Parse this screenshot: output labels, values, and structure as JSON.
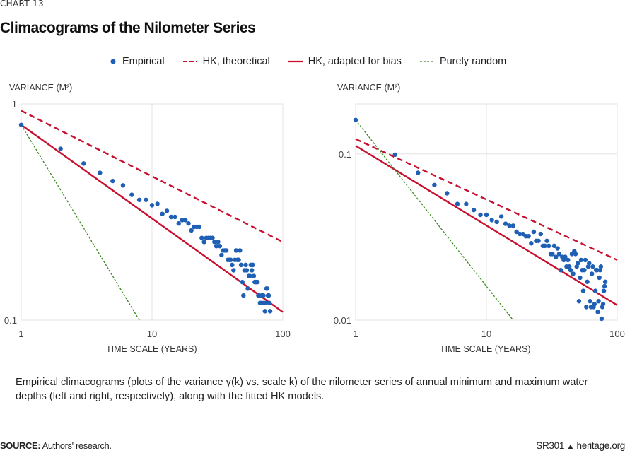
{
  "header": {
    "chart_number": "CHART 13",
    "title": "Climacograms of the Nilometer Series"
  },
  "legend": [
    {
      "label": "Empirical",
      "style": "dot",
      "color": "#1f5fb4"
    },
    {
      "label": "HK, theoretical",
      "style": "dashed",
      "color": "#c8102e"
    },
    {
      "label": "HK, adapted for bias",
      "style": "solid",
      "color": "#c8102e"
    },
    {
      "label": "Purely random",
      "style": "dotted",
      "color": "#3a8a1e"
    }
  ],
  "caption": "Empirical climacograms (plots of the variance γ(k) vs. scale k) of the nilometer series of annual minimum and maximum water depths (left and right, respectively), along with the fitted HK models.",
  "footer": {
    "source_label": "SOURCE:",
    "source_text": "Authors' research.",
    "report_id": "SR301",
    "site": "heritage.org"
  },
  "chart_data": [
    {
      "type": "scatter",
      "title": "",
      "xlabel": "TIME SCALE (YEARS)",
      "ylabel": "VARIANCE (M²)",
      "x_scale": "log",
      "y_scale": "log",
      "xlim": [
        1,
        100
      ],
      "ylim": [
        0.1,
        1
      ],
      "x_ticks": [
        "1",
        "10",
        "100"
      ],
      "y_ticks": [
        "0.1",
        "1"
      ],
      "y_tick_values": [
        0.1,
        1
      ],
      "grid": "major",
      "legend_position": "top",
      "series": [
        {
          "name": "Empirical",
          "type": "scatter",
          "x": [
            1,
            2,
            3,
            4,
            5,
            6,
            7,
            8,
            9,
            10,
            11,
            12,
            13,
            14,
            15,
            16,
            17,
            18,
            19,
            20,
            21,
            22,
            23,
            24,
            25,
            26,
            27,
            28,
            29,
            30,
            31,
            32,
            33,
            34,
            35,
            36,
            37,
            38,
            39,
            40,
            41,
            42,
            43,
            44,
            45,
            46,
            47,
            48,
            49,
            50,
            51,
            52,
            53,
            54,
            55,
            56,
            57,
            58,
            59,
            60,
            61,
            62,
            63,
            64,
            65,
            66,
            67,
            68,
            69,
            70,
            71,
            72,
            73,
            74,
            75,
            76,
            77,
            78,
            79,
            80
          ],
          "y": [
            0.8,
            0.62,
            0.53,
            0.48,
            0.44,
            0.42,
            0.38,
            0.36,
            0.36,
            0.34,
            0.345,
            0.31,
            0.32,
            0.3,
            0.3,
            0.28,
            0.29,
            0.29,
            0.28,
            0.26,
            0.27,
            0.27,
            0.27,
            0.24,
            0.23,
            0.24,
            0.24,
            0.24,
            0.24,
            0.23,
            0.22,
            0.23,
            0.22,
            0.2,
            0.21,
            0.21,
            0.21,
            0.19,
            0.19,
            0.19,
            0.18,
            0.17,
            0.19,
            0.21,
            0.19,
            0.19,
            0.21,
            0.18,
            0.15,
            0.13,
            0.17,
            0.18,
            0.17,
            0.14,
            0.16,
            0.16,
            0.18,
            0.17,
            0.18,
            0.16,
            0.15,
            0.15,
            0.15,
            0.15,
            0.13,
            0.13,
            0.12,
            0.12,
            0.13,
            0.12,
            0.13,
            0.12,
            0.11,
            0.12,
            0.14,
            0.14,
            0.13,
            0.13,
            0.12,
            0.11
          ]
        },
        {
          "name": "HK, theoretical",
          "type": "line",
          "x": [
            1,
            100
          ],
          "y": [
            0.93,
            0.23
          ]
        },
        {
          "name": "HK, adapted for bias",
          "type": "line",
          "x": [
            1,
            100
          ],
          "y": [
            0.8,
            0.109
          ]
        },
        {
          "name": "Purely random",
          "type": "line",
          "x": [
            1,
            8
          ],
          "y": [
            0.8,
            0.1
          ]
        }
      ]
    },
    {
      "type": "scatter",
      "title": "",
      "xlabel": "TIME SCALE (YEARS)",
      "ylabel": "VARIANCE (M²)",
      "x_scale": "log",
      "y_scale": "log",
      "xlim": [
        1,
        100
      ],
      "ylim": [
        0.01,
        0.2
      ],
      "x_ticks": [
        "1",
        "10",
        "100"
      ],
      "y_ticks": [
        "0.01",
        "0.1"
      ],
      "y_tick_values": [
        0.01,
        0.1
      ],
      "grid": "major",
      "legend_position": "top",
      "series": [
        {
          "name": "Empirical",
          "type": "scatter",
          "x": [
            1,
            2,
            3,
            4,
            5,
            6,
            7,
            8,
            9,
            10,
            11,
            12,
            13,
            14,
            15,
            16,
            17,
            18,
            19,
            20,
            21,
            22,
            23,
            24,
            25,
            26,
            27,
            28,
            29,
            30,
            31,
            32,
            33,
            34,
            35,
            36,
            37,
            38,
            39,
            40,
            41,
            42,
            43,
            44,
            45,
            46,
            47,
            48,
            49,
            50,
            51,
            52,
            53,
            54,
            55,
            56,
            57,
            58,
            59,
            60,
            61,
            62,
            63,
            64,
            65,
            66,
            67,
            68,
            69,
            70,
            71,
            72,
            73,
            74,
            75,
            76,
            77,
            78,
            79,
            80,
            81
          ],
          "y": [
            0.16,
            0.099,
            0.077,
            0.065,
            0.058,
            0.05,
            0.05,
            0.046,
            0.043,
            0.043,
            0.04,
            0.039,
            0.042,
            0.038,
            0.037,
            0.037,
            0.034,
            0.033,
            0.033,
            0.032,
            0.032,
            0.029,
            0.034,
            0.03,
            0.03,
            0.033,
            0.028,
            0.028,
            0.03,
            0.028,
            0.025,
            0.025,
            0.028,
            0.024,
            0.027,
            0.025,
            0.02,
            0.024,
            0.023,
            0.024,
            0.021,
            0.023,
            0.021,
            0.02,
            0.025,
            0.019,
            0.026,
            0.025,
            0.021,
            0.022,
            0.013,
            0.018,
            0.023,
            0.02,
            0.015,
            0.02,
            0.023,
            0.012,
            0.017,
            0.021,
            0.022,
            0.013,
            0.012,
            0.019,
            0.021,
            0.012,
            0.0125,
            0.015,
            0.02,
            0.02,
            0.0112,
            0.013,
            0.018,
            0.02,
            0.021,
            0.0102,
            0.012,
            0.0125,
            0.015,
            0.016,
            0.017
          ]
        },
        {
          "name": "HK, theoretical",
          "type": "line",
          "x": [
            1,
            100
          ],
          "y": [
            0.123,
            0.023
          ]
        },
        {
          "name": "HK, adapted for bias",
          "type": "line",
          "x": [
            1,
            100
          ],
          "y": [
            0.112,
            0.0123
          ]
        },
        {
          "name": "Purely random",
          "type": "line",
          "x": [
            1,
            16
          ],
          "y": [
            0.16,
            0.01
          ]
        }
      ]
    }
  ]
}
